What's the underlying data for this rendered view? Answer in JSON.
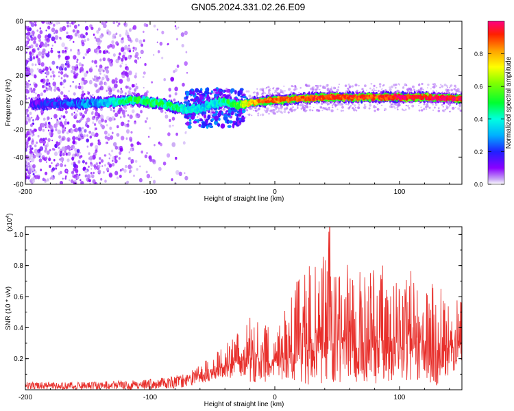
{
  "title": "GN05.2024.331.02.26.E09",
  "colors": {
    "snr_line": "#e8302c",
    "frame": "#000000"
  },
  "chart_data": [
    {
      "type": "heatmap",
      "title": "GN05.2024.331.02.26.E09",
      "xlabel": "Height of straight line (km)",
      "ylabel": "Frequency (Hz)",
      "xlim": [
        -200,
        150
      ],
      "ylim": [
        -60,
        60
      ],
      "xticks": [
        -200,
        -100,
        0,
        100
      ],
      "yticks": [
        -60,
        -40,
        -20,
        0,
        20,
        40,
        60
      ],
      "colorbar": {
        "label": "Normalized spectral amplitude",
        "range": [
          0,
          1
        ],
        "ticks": [
          "0.0",
          "0.2",
          "0.4",
          "0.6",
          "0.8"
        ],
        "colormap": "rainbow (violet to red)"
      },
      "ridge": {
        "x": [
          -200,
          -170,
          -140,
          -110,
          -95,
          -80,
          -70,
          -60,
          -50,
          -40,
          -30,
          -20,
          -10,
          0,
          20,
          40,
          60,
          80,
          100,
          120,
          150
        ],
        "freq": [
          -1,
          -1,
          0,
          2,
          0,
          -3,
          -5,
          -4,
          -1,
          1,
          -2,
          0,
          1,
          2,
          3,
          4,
          4,
          4,
          4,
          4,
          3
        ],
        "peak_amplitude": [
          0.15,
          0.2,
          0.3,
          0.5,
          0.5,
          0.45,
          0.4,
          0.35,
          0.35,
          0.45,
          0.55,
          0.75,
          0.85,
          0.85,
          0.9,
          0.9,
          0.9,
          0.9,
          0.95,
          0.95,
          0.95
        ]
      },
      "noise_region_x": [
        -200,
        -110
      ]
    },
    {
      "type": "line",
      "xlabel": "Height of straight line (km)",
      "ylabel": "SNR (10 * v/v)",
      "y_scale_label": "(x10",
      "y_scale_exp": "4",
      "y_scale_close": ")",
      "xlim": [
        -200,
        150
      ],
      "ylim": [
        0,
        1.05
      ],
      "xticks": [
        -200,
        -100,
        0,
        100
      ],
      "yticks": [
        0.2,
        0.4,
        0.6,
        0.8,
        1.0
      ],
      "series": [
        {
          "envelope_x": [
            -200,
            -150,
            -120,
            -100,
            -80,
            -70,
            -60,
            -50,
            -40,
            -30,
            -20,
            -10,
            0,
            10,
            20,
            30,
            40,
            44,
            50,
            60,
            70,
            80,
            90,
            100,
            110,
            120,
            130,
            140,
            150
          ],
          "envelope_low": [
            0.0,
            0.0,
            0.0,
            0.0,
            0.01,
            0.02,
            0.04,
            0.06,
            0.08,
            0.05,
            0.05,
            0.03,
            0.1,
            0.02,
            0.05,
            0.01,
            0.05,
            0.05,
            0.03,
            0.05,
            0.05,
            0.03,
            0.05,
            0.08,
            0.04,
            0.06,
            0.03,
            0.08,
            0.15
          ],
          "envelope_high": [
            0.05,
            0.05,
            0.06,
            0.07,
            0.09,
            0.11,
            0.16,
            0.22,
            0.3,
            0.4,
            0.48,
            0.45,
            0.38,
            0.55,
            0.78,
            0.82,
            0.9,
            1.05,
            0.8,
            0.82,
            0.75,
            0.85,
            0.78,
            0.7,
            0.78,
            0.65,
            0.7,
            0.62,
            0.65
          ]
        }
      ]
    }
  ]
}
